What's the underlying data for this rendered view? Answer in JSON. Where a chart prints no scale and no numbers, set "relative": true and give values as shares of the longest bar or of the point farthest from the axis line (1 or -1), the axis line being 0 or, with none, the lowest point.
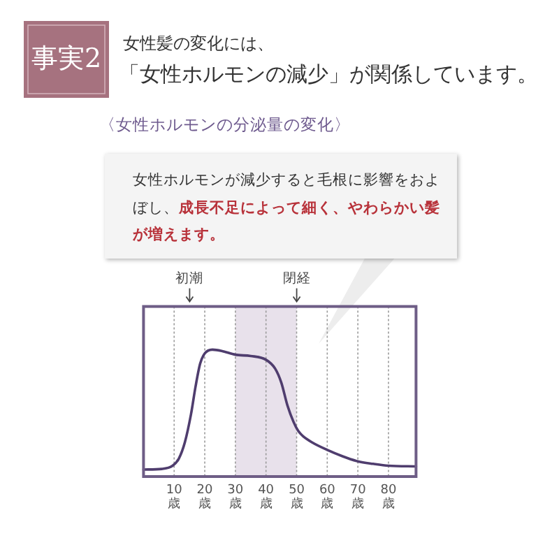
{
  "chart_data": {
    "type": "line",
    "title": "「女性ホルモンの減少」が関係しています。",
    "subtitle": "女性髪の変化には、",
    "annotations": [
      "事実2",
      "〈女性ホルモンの分泌量の変化〉",
      "女性ホルモンが減少すると毛根に影響をおよぼし、**成長不足によって細く、やわらかい髪が増えます。**",
      "初潮",
      "閉経"
    ],
    "x": [
      0,
      6,
      9.5,
      11.5,
      13.5,
      15.5,
      17,
      18.5,
      20,
      22.5,
      25.5,
      30,
      35,
      40,
      43,
      45,
      47,
      49,
      50.5,
      52,
      55,
      60,
      65,
      70,
      75,
      80,
      89
    ],
    "series": [
      {
        "color": "#4f3d6e",
        "values": [
          0.055,
          0.06,
          0.085,
          0.14,
          0.27,
          0.49,
          0.71,
          0.89,
          0.97,
          1,
          0.99,
          0.96,
          0.95,
          0.92,
          0.85,
          0.74,
          0.56,
          0.43,
          0.36,
          0.32,
          0.27,
          0.21,
          0.16,
          0.12,
          0.1,
          0.085,
          0.08
        ]
      }
    ],
    "relative": true,
    "xlim": [
      0,
      89
    ],
    "xticks": [
      {
        "value": 10,
        "label": "10歳"
      },
      {
        "value": 20,
        "label": "20歳"
      },
      {
        "value": 30,
        "label": "30歳"
      },
      {
        "value": 40,
        "label": "40歳"
      },
      {
        "value": 50,
        "label": "50歳"
      },
      {
        "value": 60,
        "label": "60歳"
      },
      {
        "value": 70,
        "label": "70歳"
      },
      {
        "value": 80,
        "label": "80歳"
      }
    ],
    "grid": "x",
    "bands": [
      {
        "axis": "x",
        "from": 30,
        "to": 50,
        "color": "#e8e1eb"
      }
    ],
    "line_style": "solid"
  }
}
